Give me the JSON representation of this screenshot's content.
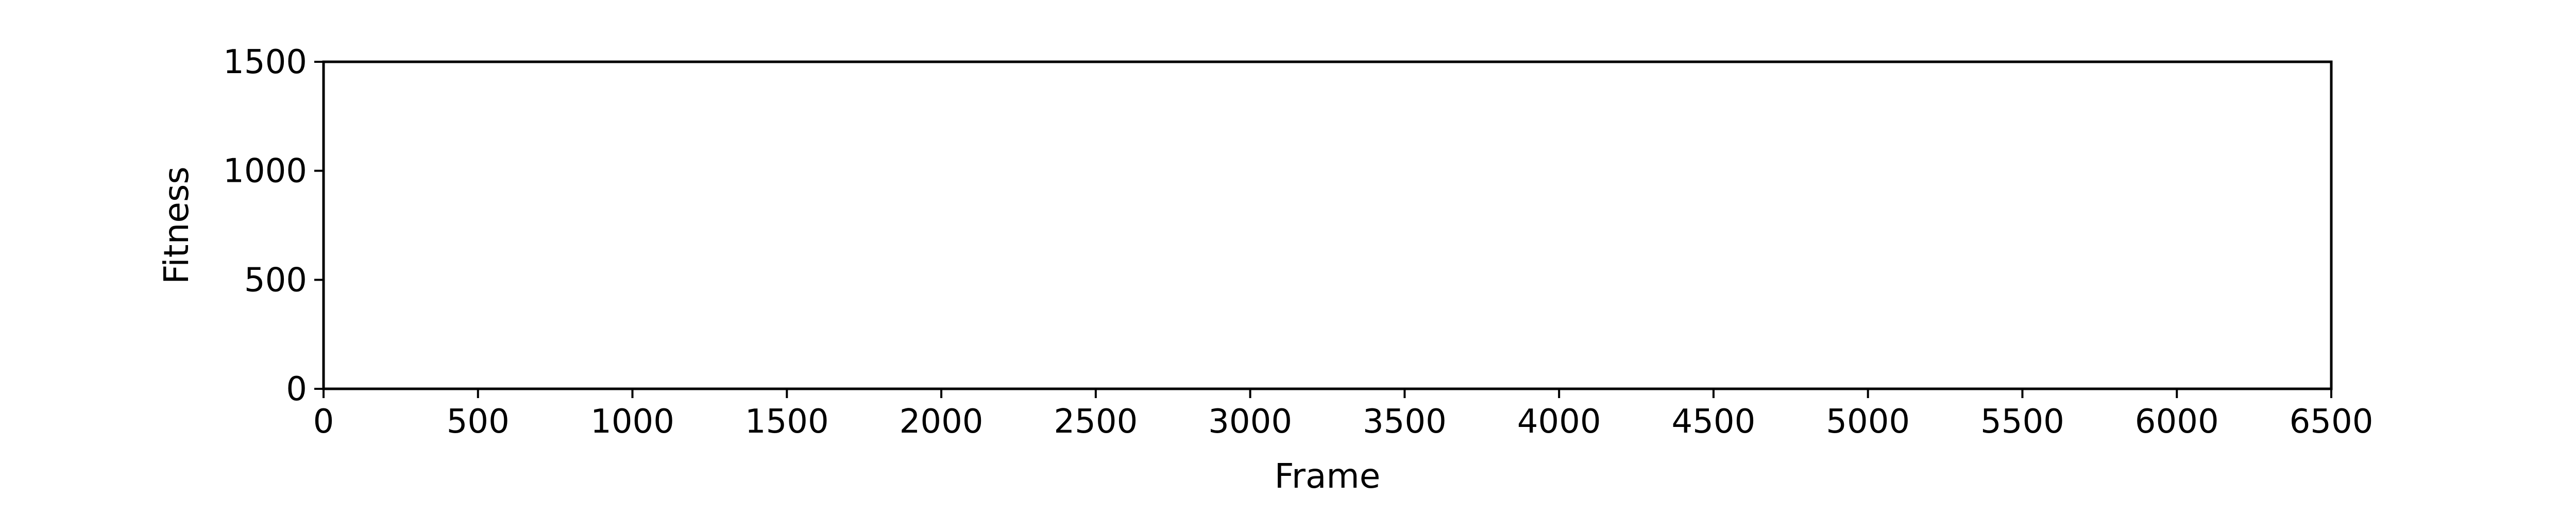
{
  "chart_data": {
    "type": "line",
    "title": "",
    "xlabel": "Frame",
    "ylabel": "Fitness",
    "xlim": [
      0,
      6500
    ],
    "ylim": [
      0,
      1500
    ],
    "x_ticks": [
      0,
      500,
      1000,
      1500,
      2000,
      2500,
      3000,
      3500,
      4000,
      4500,
      5000,
      5500,
      6000,
      6500
    ],
    "y_ticks": [
      0,
      500,
      1000,
      1500
    ],
    "grid": false,
    "series": []
  },
  "colors": {
    "axes": "#000000",
    "background": "#ffffff"
  }
}
